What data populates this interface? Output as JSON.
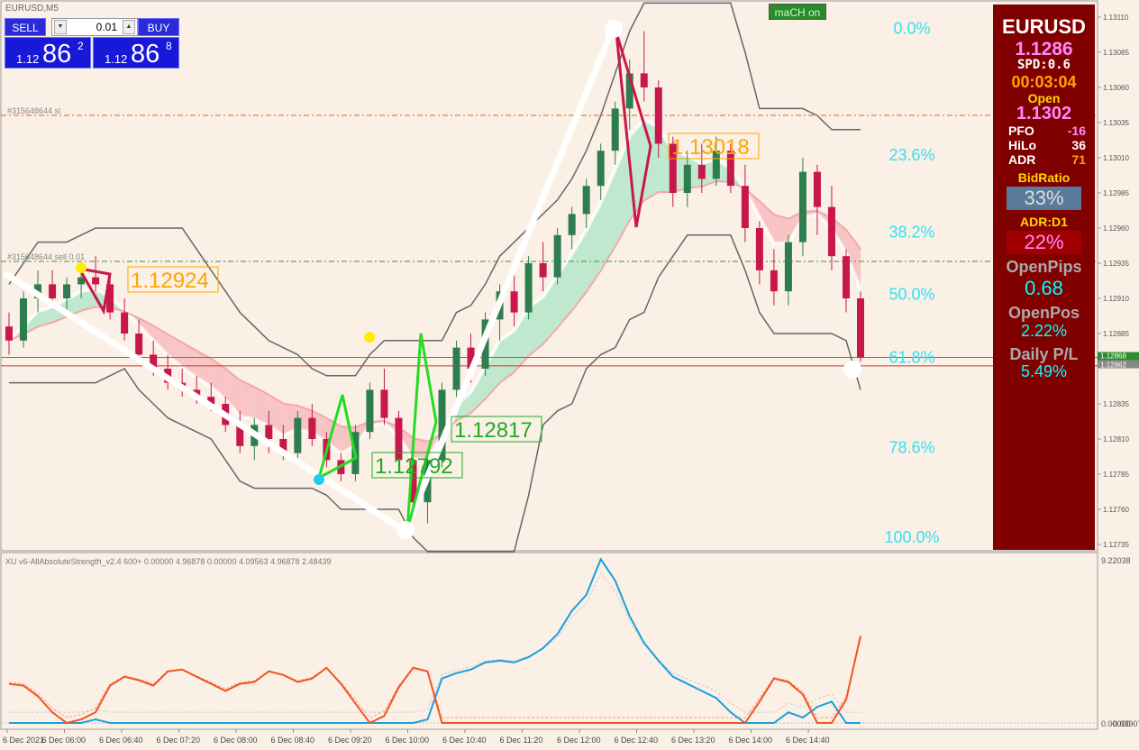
{
  "window": {
    "title": "EURUSD,M5"
  },
  "trade_panel": {
    "sell_label": "SELL",
    "buy_label": "BUY",
    "lot_value": "0.01",
    "sell_prefix": "1.12",
    "sell_big": "86",
    "sell_sup": "2",
    "buy_prefix": "1.12",
    "buy_big": "86",
    "buy_sup": "8"
  },
  "indicator_button": "maCH on",
  "info_panel": {
    "symbol": "EURUSD",
    "price": "1.1286",
    "spread": "SPD:0.6",
    "timer": "00:03:04",
    "open_label": "Open",
    "open_value": "1.1302",
    "pfo_label": "PFO",
    "pfo_value": "-16",
    "hilo_label": "HiLo",
    "hilo_value": "36",
    "adr_label": "ADR",
    "adr_value": "71",
    "bidratio_label": "BidRatio",
    "bidratio_value": "33%",
    "adrd1_label": "ADR:D1",
    "adrd1_value": "22%",
    "openpips_label": "OpenPips",
    "openpips_value": "0.68",
    "openpos_label": "OpenPos",
    "openpos_value": "2.22%",
    "dailypl_label": "Daily P/L",
    "dailypl_value": "5.49%"
  },
  "price_axis": [
    "1.13110",
    "1.13085",
    "1.13060",
    "1.13035",
    "1.13010",
    "1.12985",
    "1.12960",
    "1.12935",
    "1.12910",
    "1.12885",
    "1.12835",
    "1.12810",
    "1.12785",
    "1.12760",
    "1.12735"
  ],
  "price_tags": {
    "green": "1.12868",
    "gray": "1.12862"
  },
  "fib_levels": [
    {
      "label": "0.0%",
      "price": 1.13102
    },
    {
      "label": "23.6%",
      "price": 1.13012
    },
    {
      "label": "38.2%",
      "price": 1.12957
    },
    {
      "label": "50.0%",
      "price": 1.12913
    },
    {
      "label": "61.8%",
      "price": 1.12868
    },
    {
      "label": "78.6%",
      "price": 1.12804
    },
    {
      "label": "100.0%",
      "price": 1.1274
    }
  ],
  "order_lines": {
    "sl_label": "#315648644 sl",
    "sell_label": "#315648644 sell 0.01"
  },
  "price_labels": [
    "1.12924",
    "1.13018",
    "1.12817",
    "1.12792"
  ],
  "subwindow": {
    "title": "XU v6-AllAbsoluteStrength_v2.4 600+ 0.00000 4.96878 0.00000 4.09563 4.96878 2.48439",
    "axis_top": "9.22038",
    "axis_bottom": "0.00000",
    "axis_bottom2": "-0.03907"
  },
  "time_axis": [
    "6 Dec 2021",
    "6 Dec 06:00",
    "6 Dec 06:40",
    "6 Dec 07:20",
    "6 Dec 08:00",
    "6 Dec 08:40",
    "6 Dec 09:20",
    "6 Dec 10:00",
    "6 Dec 10:40",
    "6 Dec 11:20",
    "6 Dec 12:00",
    "6 Dec 12:40",
    "6 Dec 13:20",
    "6 Dec 14:00",
    "6 Dec 14:40"
  ],
  "chart_data": {
    "type": "candlestick",
    "symbol": "EURUSD",
    "timeframe": "M5",
    "ylim": [
      1.12725,
      1.1312
    ],
    "candles": [
      [
        1.1289,
        1.129,
        1.1287,
        1.1288
      ],
      [
        1.1288,
        1.12915,
        1.12875,
        1.1291
      ],
      [
        1.1291,
        1.1293,
        1.129,
        1.1292
      ],
      [
        1.1292,
        1.1293,
        1.12905,
        1.1291
      ],
      [
        1.1291,
        1.12925,
        1.129,
        1.1292
      ],
      [
        1.1292,
        1.12935,
        1.1291,
        1.12925
      ],
      [
        1.12925,
        1.1294,
        1.12915,
        1.1292
      ],
      [
        1.1292,
        1.12925,
        1.12895,
        1.129
      ],
      [
        1.129,
        1.1291,
        1.1288,
        1.12885
      ],
      [
        1.12885,
        1.12895,
        1.12865,
        1.1287
      ],
      [
        1.1287,
        1.1288,
        1.12855,
        1.1286
      ],
      [
        1.1286,
        1.1287,
        1.12845,
        1.1285
      ],
      [
        1.1285,
        1.1286,
        1.1284,
        1.12845
      ],
      [
        1.12845,
        1.12855,
        1.12835,
        1.1284
      ],
      [
        1.1284,
        1.1285,
        1.1283,
        1.12835
      ],
      [
        1.12835,
        1.1284,
        1.12815,
        1.1282
      ],
      [
        1.1282,
        1.1283,
        1.128,
        1.12805
      ],
      [
        1.12805,
        1.12825,
        1.12795,
        1.1282
      ],
      [
        1.1282,
        1.1283,
        1.128,
        1.1281
      ],
      [
        1.1281,
        1.1282,
        1.12795,
        1.128
      ],
      [
        1.128,
        1.1283,
        1.12795,
        1.12825
      ],
      [
        1.12825,
        1.12835,
        1.12805,
        1.1281
      ],
      [
        1.1281,
        1.12815,
        1.1279,
        1.12795
      ],
      [
        1.12795,
        1.128,
        1.1278,
        1.12785
      ],
      [
        1.12785,
        1.1282,
        1.1278,
        1.12815
      ],
      [
        1.12815,
        1.1285,
        1.1281,
        1.12845
      ],
      [
        1.12845,
        1.1286,
        1.1282,
        1.12825
      ],
      [
        1.12825,
        1.1283,
        1.1279,
        1.12795
      ],
      [
        1.12795,
        1.128,
        1.1276,
        1.12765
      ],
      [
        1.12765,
        1.128,
        1.1275,
        1.12795
      ],
      [
        1.12795,
        1.1285,
        1.1279,
        1.12845
      ],
      [
        1.12845,
        1.1288,
        1.1284,
        1.12875
      ],
      [
        1.12875,
        1.12885,
        1.1285,
        1.1286
      ],
      [
        1.1286,
        1.129,
        1.12855,
        1.12895
      ],
      [
        1.12895,
        1.1292,
        1.1288,
        1.12915
      ],
      [
        1.12915,
        1.1293,
        1.1289,
        1.129
      ],
      [
        1.129,
        1.1294,
        1.12895,
        1.12935
      ],
      [
        1.12935,
        1.1295,
        1.12915,
        1.12925
      ],
      [
        1.12925,
        1.1296,
        1.1292,
        1.12955
      ],
      [
        1.12955,
        1.12975,
        1.12945,
        1.1297
      ],
      [
        1.1297,
        1.12995,
        1.1296,
        1.1299
      ],
      [
        1.1299,
        1.1302,
        1.1298,
        1.13015
      ],
      [
        1.13015,
        1.1305,
        1.13005,
        1.13045
      ],
      [
        1.13045,
        1.1308,
        1.1303,
        1.1307
      ],
      [
        1.1307,
        1.131,
        1.1305,
        1.1306
      ],
      [
        1.1306,
        1.13065,
        1.1301,
        1.1302
      ],
      [
        1.1302,
        1.13025,
        1.12975,
        1.12985
      ],
      [
        1.12985,
        1.13015,
        1.12975,
        1.13005
      ],
      [
        1.13005,
        1.1302,
        1.12985,
        1.12995
      ],
      [
        1.12995,
        1.13025,
        1.1299,
        1.13015
      ],
      [
        1.13015,
        1.1302,
        1.12985,
        1.1299
      ],
      [
        1.1299,
        1.13005,
        1.1295,
        1.1296
      ],
      [
        1.1296,
        1.12965,
        1.1292,
        1.1293
      ],
      [
        1.1293,
        1.12945,
        1.12905,
        1.12915
      ],
      [
        1.12915,
        1.12955,
        1.12905,
        1.1295
      ],
      [
        1.1295,
        1.1301,
        1.1294,
        1.13
      ],
      [
        1.13,
        1.13005,
        1.12955,
        1.12975
      ],
      [
        1.12975,
        1.1299,
        1.1293,
        1.1294
      ],
      [
        1.1294,
        1.12945,
        1.129,
        1.1291
      ],
      [
        1.1291,
        1.12915,
        1.12865,
        1.12868
      ]
    ]
  }
}
